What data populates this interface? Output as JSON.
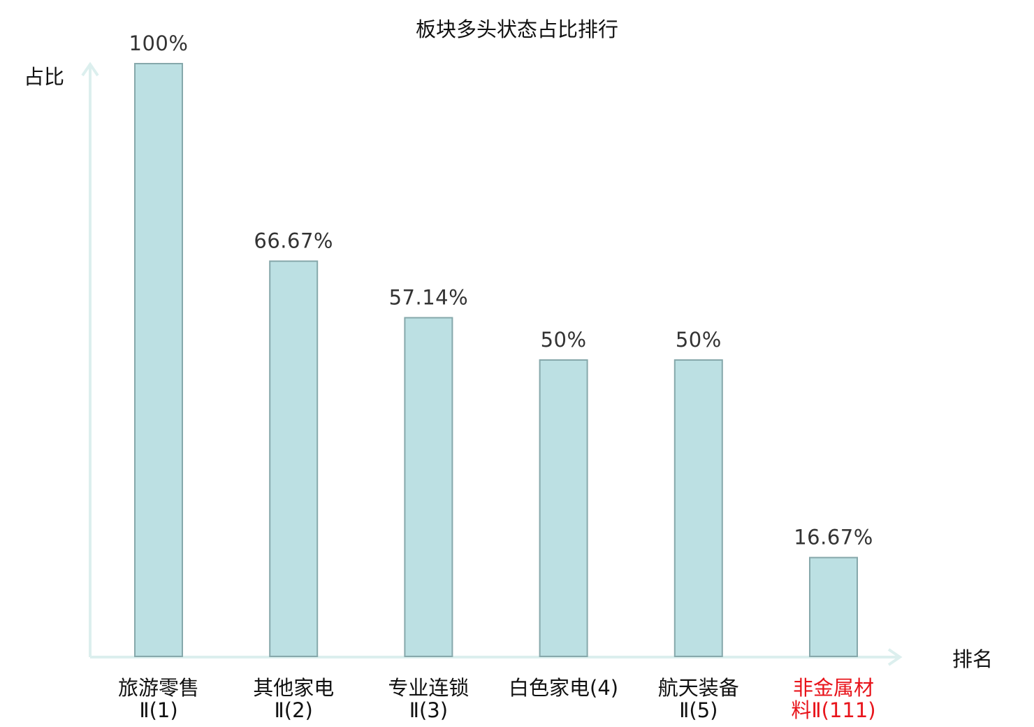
{
  "chart_data": {
    "type": "bar",
    "title": "板块多头状态占比排行",
    "xlabel": "排名",
    "ylabel": "占比",
    "ylim": [
      0,
      100
    ],
    "grid": false,
    "categories": [
      [
        "旅游零售",
        "Ⅱ(1)"
      ],
      [
        "其他家电",
        "Ⅱ(2)"
      ],
      [
        "专业连锁",
        "Ⅱ(3)"
      ],
      [
        "白色家电(4)"
      ],
      [
        "航天装备",
        "Ⅱ(5)"
      ],
      [
        "非金属材",
        "料Ⅱ(111)"
      ]
    ],
    "values": [
      100,
      66.67,
      57.14,
      50,
      50,
      16.67
    ],
    "value_labels": [
      "100%",
      "66.67%",
      "57.14%",
      "50%",
      "50%",
      "16.67%"
    ],
    "highlight_index": 5
  },
  "colors": {
    "bar_fill": "#bce0e3",
    "bar_stroke": "#86a8ab",
    "axis": "#dcefee",
    "text": "#111111",
    "value_text": "#333333",
    "highlight_text": "#e8141b"
  }
}
